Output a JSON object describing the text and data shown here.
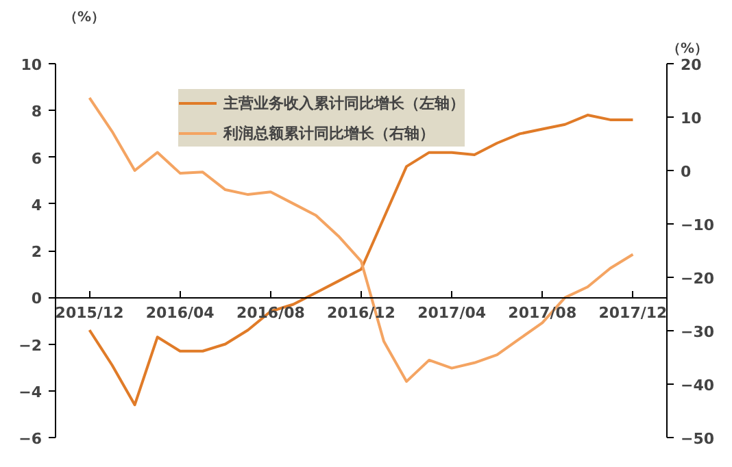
{
  "chart_data": {
    "type": "line",
    "categories": [
      "2015/12",
      null,
      null,
      null,
      "2016/04",
      null,
      null,
      null,
      "2016/08",
      null,
      null,
      null,
      "2016/12",
      null,
      null,
      null,
      "2017/04",
      null,
      null,
      null,
      "2017/08",
      null,
      null,
      null,
      "2017/12"
    ],
    "series": [
      {
        "name": "主营业务收入累计同比增长（左轴）",
        "color": "#e07b28",
        "values": [
          -1.4,
          -2.9,
          -4.6,
          -1.7,
          -2.3,
          -2.3,
          -2.0,
          -1.4,
          -0.6,
          -0.3,
          0.2,
          0.7,
          1.2,
          3.4,
          5.6,
          6.2,
          6.2,
          6.1,
          6.6,
          7.0,
          7.2,
          7.4,
          7.8,
          7.6,
          7.6
        ]
      },
      {
        "name": "利润总额累计同比增长（右轴）",
        "color": "#f4a462",
        "axis": "y2",
        "values": [
          13.6,
          7.3,
          0,
          3.4,
          -0.5,
          -0.3,
          -3.6,
          -4.5,
          -4.0,
          -6.2,
          -8.4,
          -12.3,
          -17,
          -32,
          -39.5,
          -35.5,
          -37,
          -36,
          -34.5,
          -31.5,
          -28.5,
          -23.8,
          -21.8,
          -18.3,
          -15.7
        ]
      }
    ],
    "ylabel": "（%）",
    "y2label": "（%）",
    "ylim": [
      -6,
      10
    ],
    "yticks": [
      -6,
      -4,
      -2,
      0,
      2,
      4,
      6,
      8,
      10
    ],
    "y2lim": [
      -50,
      20
    ],
    "y2ticks": [
      -50,
      -40,
      -30,
      -20,
      -10,
      0,
      10,
      20
    ],
    "legend": "top",
    "grid": false
  }
}
